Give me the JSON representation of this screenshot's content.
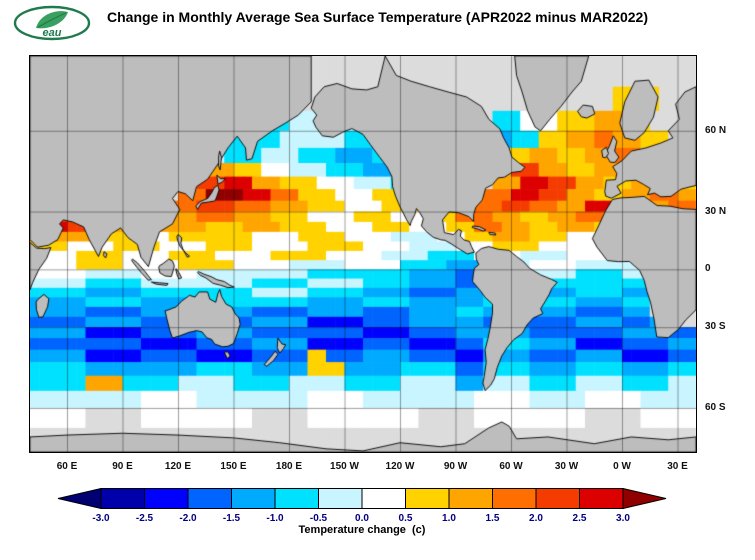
{
  "header": {
    "title": "Change in Monthly Average Sea Surface Temperature (APR2022 minus MAR2022)",
    "logo_text": "eau"
  },
  "map": {
    "lat_labels": [
      {
        "text": "60 N",
        "lat": 60
      },
      {
        "text": "30 N",
        "lat": 30
      },
      {
        "text": "0",
        "lat": 0
      },
      {
        "text": "30 S",
        "lat": -30
      },
      {
        "text": "60 S",
        "lat": -60
      }
    ],
    "lon_labels": [
      {
        "text": "60 E",
        "lon": 60
      },
      {
        "text": "90 E",
        "lon": 90
      },
      {
        "text": "120 E",
        "lon": 120
      },
      {
        "text": "150 E",
        "lon": 150
      },
      {
        "text": "180 E",
        "lon": 180
      },
      {
        "text": "150 W",
        "lon": 210
      },
      {
        "text": "120 W",
        "lon": 240
      },
      {
        "text": "90 W",
        "lon": 270
      },
      {
        "text": "60 W",
        "lon": 300
      },
      {
        "text": "30 W",
        "lon": 330
      },
      {
        "text": "0 W",
        "lon": 360
      },
      {
        "text": "30 E",
        "lon": 390
      }
    ],
    "grid_interval_deg": 30,
    "land_color": "#BDBDBD",
    "no_data_color": "#DCDCDC",
    "coast_color": "#000000"
  },
  "colorbar": {
    "ticks": [
      "-3.0",
      "-2.5",
      "-2.0",
      "-1.5",
      "-1.0",
      "-0.5",
      "0.0",
      "0.5",
      "1.0",
      "1.5",
      "2.0",
      "2.5",
      "3.0"
    ],
    "colors": [
      "#000072",
      "#0000AA",
      "#0000FF",
      "#0064FF",
      "#00AAFF",
      "#00E1FF",
      "#C8F5FF",
      "#FFFFFF",
      "#FFD200",
      "#FFA500",
      "#FF6E00",
      "#F53C00",
      "#DC0000",
      "#900000"
    ],
    "tick_color": "#000080",
    "caption": "Temperature change  (c)"
  },
  "chart_data": {
    "type": "heatmap",
    "title": "Change in Monthly Average Sea Surface Temperature (APR2022 minus MAR2022)",
    "units": "c",
    "projection": "mercator",
    "lon_range": [
      40,
      400
    ],
    "lat_range": [
      -70,
      75
    ],
    "cell_deg": 5,
    "palette_chars": "0123456789ABCD",
    "bins": {
      "0": "< -3.0",
      "1": "-3.0 to -2.5",
      "2": "-2.5 to -2.0",
      "3": "-2.0 to -1.5",
      "4": "-1.5 to -1.0",
      "5": "-1.0 to -0.5",
      "6": "-0.5 to 0.0",
      "7": "0.0 to 0.5",
      "8": "0.5 to 1.0",
      "9": "1.0 to 1.5",
      "A": "1.5 to 2.0",
      "B": "2.0 to 2.5",
      "C": "2.5 to 3.0",
      "D": "> 3.0",
      "G": "no data / ice"
    },
    "grid_rle": [
      "72G",
      "63G 58 4G",
      "22G 65 76 15G 35 47 48 39 38 5G",
      "20G 75 76 45 11G 34 35 38 39 2A 39 38 3G",
      "18G 36 45 46 45 44 35 8G 35 38 39 38 39 3A 6G",
      "18G 49 38 37 46 45 44 6G 38 39 3B 39 38 39 8G",
      "18G 3B 3C 39 48 47 46 45 3G 28 2G 39 3C 3B 39 38 39 48",
      "16G 3A 4D 3C 3A 48 47 48 37 2G 39 3A 3C 3B 39 38 39 3A 29",
      "14G 4A 4B 4A 49 48 47 48 37 39 3A 3B 3A 39 3C 3B 39 3A",
      "3C 3B 8G 49 4A 49 48 57 48 47 38 4A 39 38 39 3A 39 38 49",
      "4C 3B 39 38 69 48 49 58 57 48 47 38 3A 39 38 49 48 37 4G",
      "3A 49 48 47 98 57 58 57 56 37 38 49 48 47 48 37 3G",
      "48 57 58 57 58 67 68 57 56 47 58 107 7G",
      "57 58 57 58 67 68 67 56 55 57 56 67 8G",
      "57 58 67 68 67 66 67 55 44 56 57 56 26 6G",
      "67 66 67 126 115 54 33 55 56 55 36 5G",
      "66 65 126 65 66 55 54 33 54 135 5G",
      "65 64 125 66 65 54 53 34 55 54 55 34 5G",
      "64 65 64 125 64 55 84 105 54 35 5G",
      "64 63 124 63 64 53 54 35 104 53 34 5G",
      "63 64 123 64 62 53 84 103 54 33 24 3G",
      "64 62 63 64 123 52 53 84 103 54 33",
      "123 62 63 64 62 53 52 33 55 54 52 53 34",
      "64 62 63 62 63 28 43 54 53 32 54 53 54 52 33",
      "65 124 65 64 48 64 65 33 55 54 55 54 35",
      "65 49 65 66 65 66 65 66 34 56 55 56 55 36",
      "126 67 126 67 126 67 66 67 66",
      "67 6G 127 6G 127 6G 127 6G 67",
      "72G"
    ]
  }
}
